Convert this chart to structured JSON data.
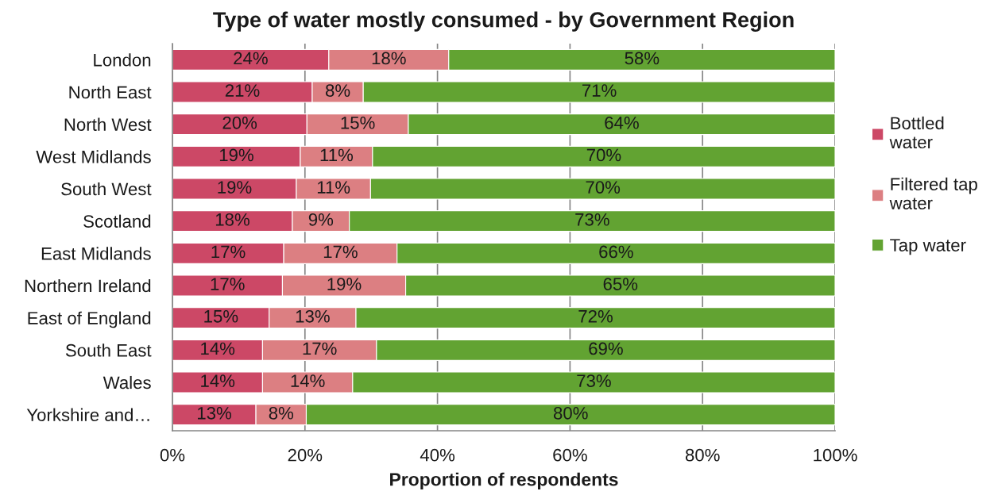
{
  "chart_data": {
    "type": "bar",
    "orientation": "horizontal",
    "stacked": true,
    "title": "Type of water mostly consumed - by Government Region",
    "xlabel": "Proportion of respondents",
    "categories": [
      "London",
      "North East",
      "North West",
      "West Midlands",
      "South West",
      "Scotland",
      "East Midlands",
      "Northern Ireland",
      "East of England",
      "South East",
      "Wales",
      "Yorkshire and…"
    ],
    "series": [
      {
        "name": "Bottled water",
        "color": "#cc4866",
        "values": [
          23.6,
          21.1,
          20.3,
          19.3,
          18.7,
          18.1,
          16.8,
          16.6,
          14.6,
          13.6,
          13.6,
          12.6
        ],
        "value_labels": [
          "24%",
          "21%",
          "20%",
          "19%",
          "19%",
          "18%",
          "17%",
          "17%",
          "15%",
          "14%",
          "14%",
          "13%"
        ]
      },
      {
        "name": "Filtered tap water",
        "color": "#dc7f82",
        "values": [
          18.1,
          7.7,
          15.3,
          10.9,
          11.2,
          8.6,
          17.1,
          18.6,
          13.1,
          17.2,
          13.6,
          7.6
        ],
        "value_labels": [
          "18%",
          "8%",
          "15%",
          "11%",
          "11%",
          "9%",
          "17%",
          "19%",
          "13%",
          "17%",
          "14%",
          "8%"
        ]
      },
      {
        "name": "Tap water",
        "color": "#62a332",
        "values": [
          58.3,
          71.2,
          64.4,
          69.8,
          70.1,
          73.3,
          66.1,
          64.8,
          72.3,
          69.2,
          72.8,
          79.8
        ],
        "value_labels": [
          "58%",
          "71%",
          "64%",
          "70%",
          "70%",
          "73%",
          "66%",
          "65%",
          "72%",
          "69%",
          "73%",
          "80%"
        ]
      }
    ],
    "xlim": [
      0,
      100
    ],
    "xticks": [
      {
        "value": 0,
        "label": "0%"
      },
      {
        "value": 20,
        "label": "20%"
      },
      {
        "value": 40,
        "label": "40%"
      },
      {
        "value": 60,
        "label": "60%"
      },
      {
        "value": 80,
        "label": "80%"
      },
      {
        "value": 100,
        "label": "100%"
      }
    ],
    "grid": "x",
    "legend": "right"
  }
}
